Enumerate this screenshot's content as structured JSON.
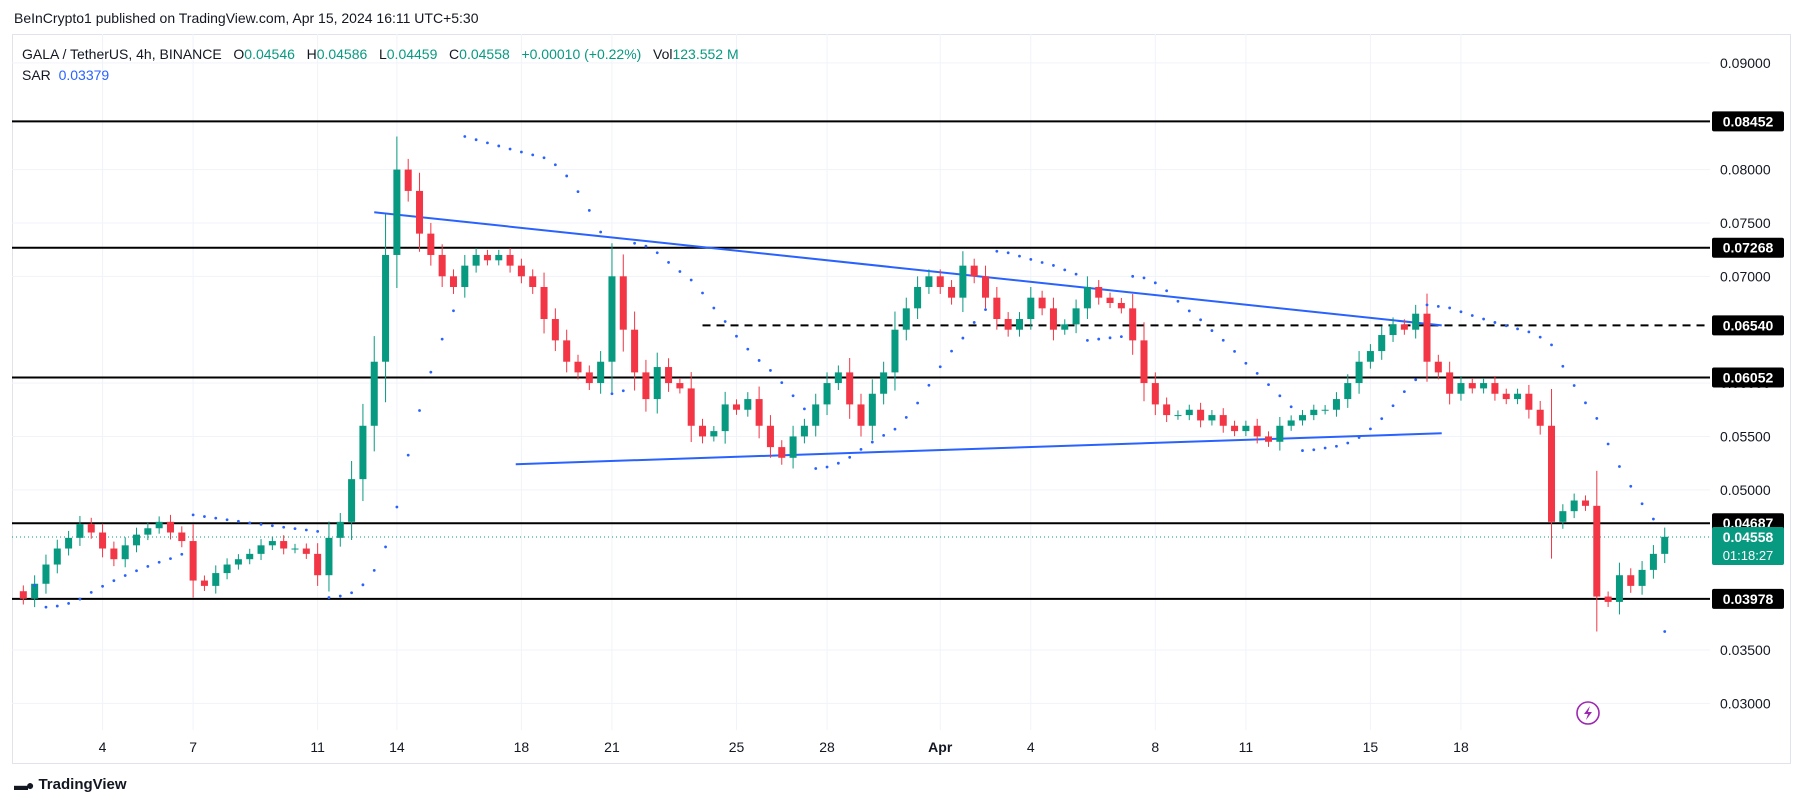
{
  "caption": "BeInCrypto1 published on TradingView.com, Apr 15, 2024 16:11 UTC+5:30",
  "legend": {
    "symbol": "GALA / TetherUS, 4h, BINANCE",
    "open_label": "O",
    "open": "0.04546",
    "high_label": "H",
    "high": "0.04586",
    "low_label": "L",
    "low": "0.04459",
    "close_label": "C",
    "close": "0.04558",
    "change": "+0.00010 (+0.22%)",
    "vol_label": "Vol",
    "vol": "123.552 M",
    "sar_label": "SAR",
    "sar": "0.03379"
  },
  "footer": {
    "brand": "TradingView"
  },
  "colors": {
    "up": "#089981",
    "down": "#f23645",
    "sar": "#2962ff",
    "trend": "#2962ff",
    "level": "#000000",
    "grid": "#f0f3fa",
    "current": "#089981"
  },
  "icons": {
    "lightning": "lightning-bolt-icon",
    "logo": "tradingview-logo-icon"
  },
  "chart_data": {
    "type": "candlestick",
    "y_range": [
      0.0275,
      0.0927
    ],
    "x_range": [
      0,
      150
    ],
    "y_ticks": [
      "0.09000",
      "0.08000",
      "0.07500",
      "0.07000",
      "0.06000",
      "0.05500",
      "0.05000",
      "0.03500",
      "0.03000"
    ],
    "y_tick_values": [
      0.09,
      0.08,
      0.075,
      0.07,
      0.06,
      0.055,
      0.05,
      0.035,
      0.03
    ],
    "x_ticks": [
      {
        "label": "4",
        "i": 8,
        "bold": false
      },
      {
        "label": "7",
        "i": 16,
        "bold": false
      },
      {
        "label": "11",
        "i": 27,
        "bold": false
      },
      {
        "label": "14",
        "i": 34,
        "bold": false
      },
      {
        "label": "18",
        "i": 45,
        "bold": false
      },
      {
        "label": "21",
        "i": 53,
        "bold": false
      },
      {
        "label": "25",
        "i": 64,
        "bold": false
      },
      {
        "label": "28",
        "i": 72,
        "bold": false
      },
      {
        "label": "Apr",
        "i": 82,
        "bold": true
      },
      {
        "label": "4",
        "i": 90,
        "bold": false
      },
      {
        "label": "8",
        "i": 101,
        "bold": false
      },
      {
        "label": "11",
        "i": 109,
        "bold": false
      },
      {
        "label": "15",
        "i": 120,
        "bold": false
      },
      {
        "label": "18",
        "i": 128,
        "bold": false
      }
    ],
    "levels": [
      {
        "value": 0.08452,
        "label": "0.08452",
        "style": "solid"
      },
      {
        "value": 0.07268,
        "label": "0.07268",
        "style": "solid"
      },
      {
        "value": 0.0654,
        "label": "0.06540",
        "style": "dashed"
      },
      {
        "value": 0.06052,
        "label": "0.06052",
        "style": "solid"
      },
      {
        "value": 0.04687,
        "label": "0.04687",
        "style": "solid"
      },
      {
        "value": 0.03978,
        "label": "0.03978",
        "style": "solid"
      }
    ],
    "current": {
      "value": 0.04558,
      "label": "0.04558",
      "countdown": "01:18:27"
    },
    "trendlines": [
      {
        "x1": 32,
        "y1": 0.076,
        "x2": 126.3,
        "y2": 0.0654
      },
      {
        "x1": 44.5,
        "y1": 0.0524,
        "x2": 126.3,
        "y2": 0.0553
      }
    ],
    "close": [
      0.0398,
      0.0412,
      0.043,
      0.0445,
      0.0455,
      0.0468,
      0.046,
      0.0445,
      0.0435,
      0.0448,
      0.0458,
      0.0464,
      0.047,
      0.046,
      0.0452,
      0.0415,
      0.041,
      0.0422,
      0.043,
      0.0435,
      0.044,
      0.0448,
      0.0452,
      0.0445,
      0.0445,
      0.044,
      0.042,
      0.0455,
      0.047,
      0.051,
      0.056,
      0.062,
      0.072,
      0.08,
      0.078,
      0.074,
      0.072,
      0.07,
      0.069,
      0.071,
      0.072,
      0.0715,
      0.072,
      0.071,
      0.07,
      0.069,
      0.066,
      0.064,
      0.062,
      0.061,
      0.06,
      0.062,
      0.07,
      0.065,
      0.061,
      0.0585,
      0.0615,
      0.06,
      0.0595,
      0.056,
      0.055,
      0.0555,
      0.058,
      0.0575,
      0.0585,
      0.056,
      0.054,
      0.053,
      0.055,
      0.056,
      0.058,
      0.06,
      0.061,
      0.058,
      0.056,
      0.059,
      0.061,
      0.065,
      0.067,
      0.069,
      0.07,
      0.069,
      0.068,
      0.071,
      0.07,
      0.068,
      0.066,
      0.065,
      0.066,
      0.068,
      0.067,
      0.065,
      0.0655,
      0.067,
      0.069,
      0.068,
      0.0675,
      0.067,
      0.064,
      0.06,
      0.058,
      0.057,
      0.057,
      0.0575,
      0.0565,
      0.057,
      0.056,
      0.0555,
      0.056,
      0.055,
      0.0545,
      0.056,
      0.0565,
      0.057,
      0.0575,
      0.0575,
      0.0585,
      0.06,
      0.062,
      0.063,
      0.0645,
      0.0655,
      0.065,
      0.0665,
      0.062,
      0.061,
      0.059,
      0.06,
      0.0595,
      0.06,
      0.059,
      0.0585,
      0.059,
      0.0575,
      0.056,
      0.047,
      0.048,
      0.049,
      0.0485,
      0.04,
      0.0395,
      0.042,
      0.041,
      0.0425,
      0.044,
      0.0456
    ]
  }
}
